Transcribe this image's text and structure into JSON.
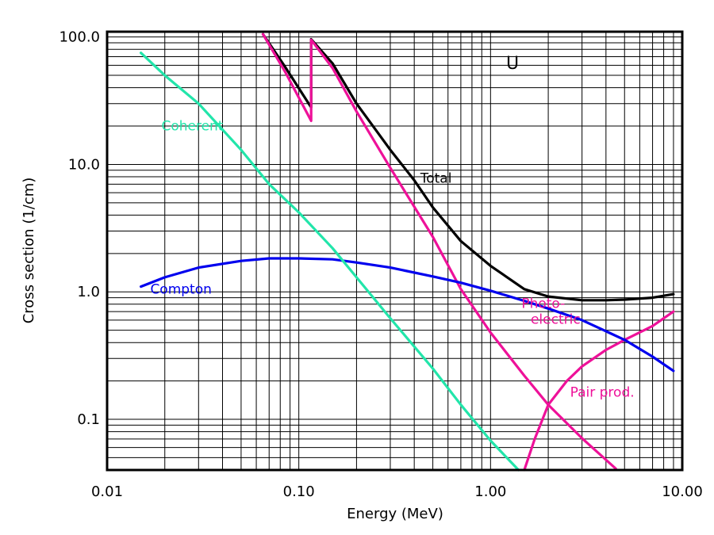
{
  "chart_data": {
    "type": "line",
    "title": "",
    "element_label": "U",
    "xlabel": "Energy (MeV)",
    "ylabel": "Cross section (1/cm)",
    "xscale": "log",
    "yscale": "log",
    "xlim": [
      0.01,
      10.0
    ],
    "ylim": [
      0.04,
      110
    ],
    "x_ticks": [
      0.01,
      0.1,
      1.0,
      10.0
    ],
    "x_tick_labels": [
      "0.01",
      "0.10",
      "1.00",
      "10.00"
    ],
    "y_ticks": [
      0.1,
      1.0,
      10.0,
      100.0
    ],
    "y_tick_labels": [
      "0.1",
      "1.0",
      "10.0",
      "100.0"
    ],
    "grid": true,
    "legend": "none",
    "series": [
      {
        "name": "Total",
        "color": "#000000",
        "points": [
          [
            0.065,
            105
          ],
          [
            0.085,
            58
          ],
          [
            0.1159,
            28
          ],
          [
            0.1159,
            96
          ],
          [
            0.15,
            62
          ],
          [
            0.2,
            30
          ],
          [
            0.3,
            13
          ],
          [
            0.4,
            7.5
          ],
          [
            0.5,
            4.6
          ],
          [
            0.7,
            2.5
          ],
          [
            1.0,
            1.6
          ],
          [
            1.5,
            1.05
          ],
          [
            2.0,
            0.92
          ],
          [
            3.0,
            0.86
          ],
          [
            4.0,
            0.86
          ],
          [
            5.0,
            0.87
          ],
          [
            7.0,
            0.9
          ],
          [
            9.0,
            0.96
          ]
        ]
      },
      {
        "name": "Photo-electric",
        "color": "#ee1199",
        "points": [
          [
            0.065,
            105
          ],
          [
            0.085,
            53
          ],
          [
            0.1159,
            22
          ],
          [
            0.1159,
            95
          ],
          [
            0.15,
            57
          ],
          [
            0.2,
            26
          ],
          [
            0.3,
            9.4
          ],
          [
            0.5,
            2.7
          ],
          [
            0.7,
            1.05
          ],
          [
            1.0,
            0.48
          ],
          [
            1.5,
            0.22
          ],
          [
            2.0,
            0.13
          ],
          [
            3.0,
            0.071
          ],
          [
            4.5,
            0.041
          ]
        ]
      },
      {
        "name": "Pair prod.",
        "color": "#ee1199",
        "points": [
          [
            1.5,
            0.04
          ],
          [
            1.7,
            0.07
          ],
          [
            2.0,
            0.13
          ],
          [
            2.5,
            0.2
          ],
          [
            3.0,
            0.26
          ],
          [
            4.0,
            0.35
          ],
          [
            5.0,
            0.42
          ],
          [
            7.0,
            0.54
          ],
          [
            9.0,
            0.7
          ]
        ]
      },
      {
        "name": "Compton",
        "color": "#0000ee",
        "points": [
          [
            0.015,
            1.1
          ],
          [
            0.02,
            1.3
          ],
          [
            0.03,
            1.55
          ],
          [
            0.05,
            1.75
          ],
          [
            0.07,
            1.83
          ],
          [
            0.1,
            1.83
          ],
          [
            0.15,
            1.8
          ],
          [
            0.2,
            1.7
          ],
          [
            0.3,
            1.55
          ],
          [
            0.5,
            1.32
          ],
          [
            0.7,
            1.18
          ],
          [
            1.0,
            1.02
          ],
          [
            1.5,
            0.85
          ],
          [
            2.0,
            0.74
          ],
          [
            3.0,
            0.6
          ],
          [
            5.0,
            0.42
          ],
          [
            7.0,
            0.31
          ],
          [
            9.0,
            0.24
          ]
        ]
      },
      {
        "name": "Coherent",
        "color": "#22e5aa",
        "points": [
          [
            0.015,
            75
          ],
          [
            0.02,
            50
          ],
          [
            0.03,
            30
          ],
          [
            0.05,
            13
          ],
          [
            0.07,
            7.0
          ],
          [
            0.1,
            4.2
          ],
          [
            0.15,
            2.2
          ],
          [
            0.2,
            1.3
          ],
          [
            0.3,
            0.62
          ],
          [
            0.5,
            0.25
          ],
          [
            0.7,
            0.13
          ],
          [
            1.0,
            0.068
          ],
          [
            1.4,
            0.04
          ]
        ]
      }
    ],
    "annotations": [
      {
        "text": "Total",
        "x": 0.43,
        "y": 7.2,
        "color": "#000000"
      },
      {
        "text": "Coherent",
        "x": 0.0192,
        "y": 18.5,
        "color": "#22e5aa"
      },
      {
        "text": "Compton",
        "x": 0.0168,
        "y": 0.97,
        "color": "#0000ee"
      },
      {
        "text": "Photo-",
        "x": 1.45,
        "y": 0.75,
        "color": "#ee1199"
      },
      {
        "text": "electric",
        "x": 1.62,
        "y": 0.56,
        "color": "#ee1199"
      },
      {
        "text": "Pair prod.",
        "x": 2.6,
        "y": 0.15,
        "color": "#ee1199"
      }
    ]
  }
}
